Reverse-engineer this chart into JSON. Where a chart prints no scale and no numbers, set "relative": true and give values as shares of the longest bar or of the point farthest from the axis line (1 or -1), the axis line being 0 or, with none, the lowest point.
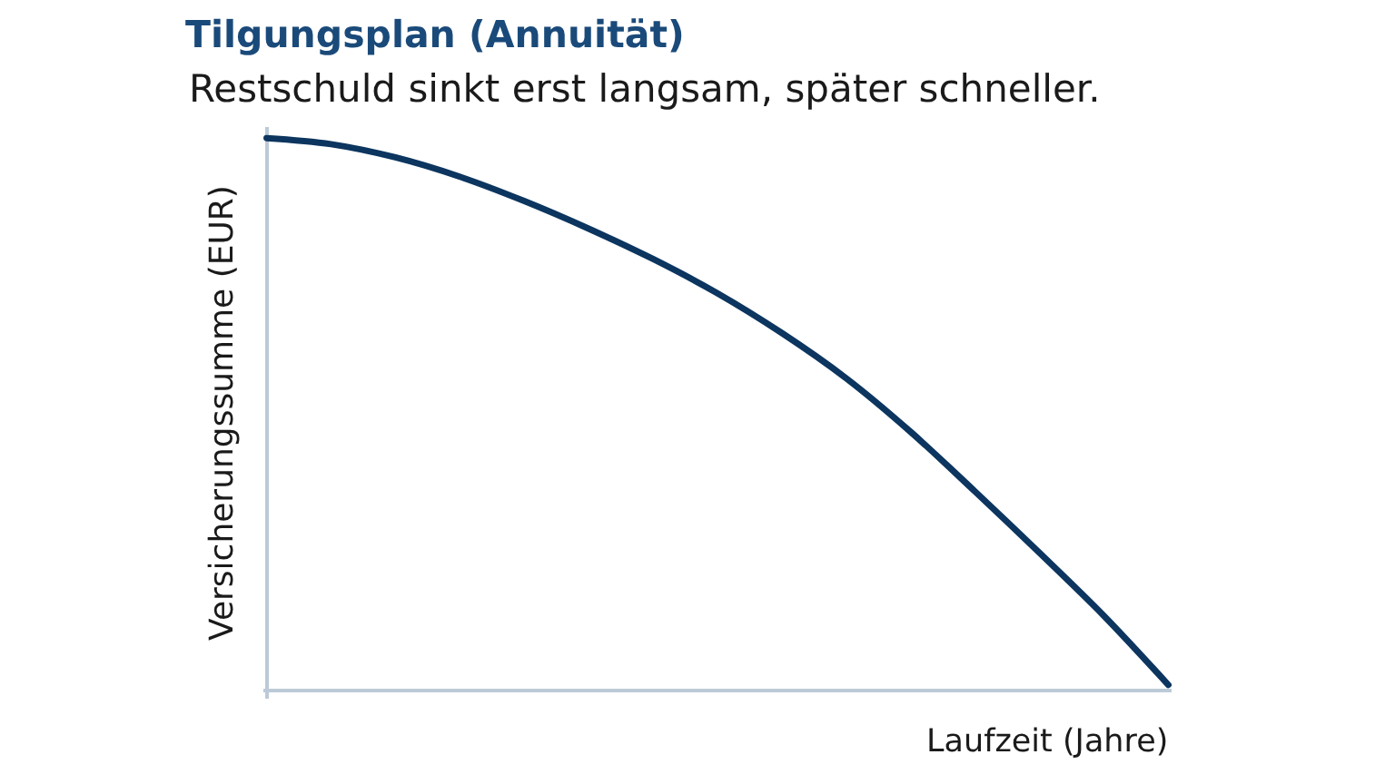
{
  "chart_data": {
    "type": "line",
    "title": "Tilgungsplan (Annuität)",
    "subtitle": "Restschuld sinkt erst langsam, später schneller.",
    "xlabel": "Laufzeit (Jahre)",
    "ylabel": "Versicherungssumme (EUR)",
    "categories": [
      null,
      null,
      null,
      null,
      null,
      null,
      null,
      null,
      null,
      null,
      null,
      null,
      null,
      null,
      null
    ],
    "values": [
      1,
      0.989,
      0.965,
      0.93,
      0.886,
      0.836,
      0.781,
      0.719,
      0.647,
      0.565,
      0.468,
      0.36,
      0.249,
      0.135,
      0.01
    ],
    "color": "#0c355f",
    "relative": true,
    "line_style": "solid"
  }
}
